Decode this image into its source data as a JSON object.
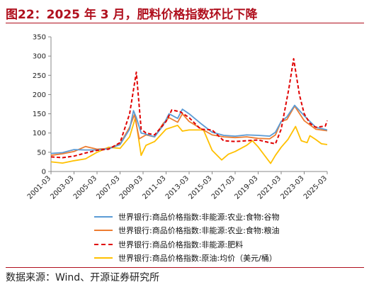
{
  "title": "图22：2025 年 3 月，肥料价格指数环比下降",
  "source": "数据来源：Wind、开源证券研究所",
  "chart_data": {
    "type": "line",
    "ylim": [
      0,
      350
    ],
    "yticks": [
      "0",
      "50",
      "100",
      "150",
      "200",
      "250",
      "300",
      "350"
    ],
    "xticks": [
      "2001-03",
      "2003-03",
      "2005-03",
      "2007-03",
      "2009-03",
      "2011-03",
      "2013-03",
      "2015-03",
      "2017-03",
      "2019-03",
      "2021-03",
      "2023-03",
      "2025-03"
    ],
    "legend_position": "bottom",
    "grid": false,
    "series": [
      {
        "name": "世界银行:商品价格指数:非能源:农业:食物:谷物",
        "color": "#5b9bd5",
        "dash": "solid",
        "points": [
          [
            "2001-03",
            47
          ],
          [
            "2002-03",
            49
          ],
          [
            "2003-03",
            57
          ],
          [
            "2004-03",
            56
          ],
          [
            "2005-03",
            56
          ],
          [
            "2006-03",
            59
          ],
          [
            "2007-03",
            70
          ],
          [
            "2008-01",
            110
          ],
          [
            "2008-05",
            158
          ],
          [
            "2008-08",
            140
          ],
          [
            "2009-01",
            100
          ],
          [
            "2009-06",
            97
          ],
          [
            "2010-03",
            90
          ],
          [
            "2010-12",
            120
          ],
          [
            "2011-06",
            150
          ],
          [
            "2012-03",
            138
          ],
          [
            "2012-08",
            162
          ],
          [
            "2013-03",
            150
          ],
          [
            "2014-03",
            125
          ],
          [
            "2015-03",
            102
          ],
          [
            "2016-03",
            94
          ],
          [
            "2017-03",
            92
          ],
          [
            "2018-03",
            95
          ],
          [
            "2019-03",
            94
          ],
          [
            "2020-03",
            92
          ],
          [
            "2020-09",
            102
          ],
          [
            "2021-03",
            130
          ],
          [
            "2021-09",
            142
          ],
          [
            "2022-05",
            172
          ],
          [
            "2023-03",
            145
          ],
          [
            "2024-03",
            115
          ],
          [
            "2025-03",
            108
          ]
        ]
      },
      {
        "name": "世界银行:商品价格指数:非能源:农业:食物:粮油",
        "color": "#ed7d31",
        "dash": "solid",
        "points": [
          [
            "2001-03",
            42
          ],
          [
            "2002-03",
            46
          ],
          [
            "2003-03",
            52
          ],
          [
            "2004-03",
            65
          ],
          [
            "2005-03",
            58
          ],
          [
            "2006-03",
            60
          ],
          [
            "2007-03",
            72
          ],
          [
            "2008-01",
            115
          ],
          [
            "2008-06",
            148
          ],
          [
            "2008-11",
            85
          ],
          [
            "2009-06",
            95
          ],
          [
            "2010-03",
            90
          ],
          [
            "2010-12",
            125
          ],
          [
            "2011-06",
            140
          ],
          [
            "2012-03",
            128
          ],
          [
            "2012-08",
            150
          ],
          [
            "2013-03",
            130
          ],
          [
            "2014-03",
            112
          ],
          [
            "2015-03",
            95
          ],
          [
            "2016-03",
            90
          ],
          [
            "2017-03",
            88
          ],
          [
            "2018-03",
            90
          ],
          [
            "2019-03",
            86
          ],
          [
            "2020-03",
            85
          ],
          [
            "2020-09",
            95
          ],
          [
            "2021-03",
            130
          ],
          [
            "2021-09",
            135
          ],
          [
            "2022-05",
            170
          ],
          [
            "2023-03",
            132
          ],
          [
            "2024-03",
            110
          ],
          [
            "2025-03",
            106
          ]
        ]
      },
      {
        "name": "世界银行:商品价格指数:非能源:肥料",
        "color": "#e00000",
        "dash": "dashed",
        "points": [
          [
            "2001-03",
            38
          ],
          [
            "2002-03",
            36
          ],
          [
            "2003-03",
            40
          ],
          [
            "2004-03",
            48
          ],
          [
            "2005-03",
            55
          ],
          [
            "2006-03",
            58
          ],
          [
            "2007-03",
            75
          ],
          [
            "2008-01",
            150
          ],
          [
            "2008-08",
            258
          ],
          [
            "2009-01",
            110
          ],
          [
            "2009-06",
            100
          ],
          [
            "2010-03",
            95
          ],
          [
            "2011-03",
            130
          ],
          [
            "2011-09",
            160
          ],
          [
            "2012-06",
            155
          ],
          [
            "2013-03",
            140
          ],
          [
            "2014-03",
            110
          ],
          [
            "2015-03",
            108
          ],
          [
            "2016-03",
            80
          ],
          [
            "2017-03",
            78
          ],
          [
            "2018-03",
            80
          ],
          [
            "2019-03",
            82
          ],
          [
            "2020-03",
            75
          ],
          [
            "2020-09",
            72
          ],
          [
            "2021-03",
            110
          ],
          [
            "2021-11",
            215
          ],
          [
            "2022-04",
            293
          ],
          [
            "2022-10",
            200
          ],
          [
            "2023-03",
            150
          ],
          [
            "2023-09",
            125
          ],
          [
            "2024-03",
            115
          ],
          [
            "2025-01",
            118
          ],
          [
            "2025-03",
            132
          ]
        ]
      },
      {
        "name": "世界银行:商品价格指数:原油:均价（美元/桶）",
        "color": "#ffc000",
        "dash": "solid",
        "points": [
          [
            "2001-03",
            25
          ],
          [
            "2002-03",
            22
          ],
          [
            "2003-03",
            28
          ],
          [
            "2004-03",
            33
          ],
          [
            "2005-03",
            50
          ],
          [
            "2006-03",
            63
          ],
          [
            "2007-03",
            60
          ],
          [
            "2008-01",
            90
          ],
          [
            "2008-07",
            140
          ],
          [
            "2009-01",
            42
          ],
          [
            "2009-06",
            68
          ],
          [
            "2010-03",
            78
          ],
          [
            "2011-03",
            110
          ],
          [
            "2012-03",
            120
          ],
          [
            "2012-08",
            105
          ],
          [
            "2013-03",
            108
          ],
          [
            "2014-06",
            108
          ],
          [
            "2015-03",
            55
          ],
          [
            "2016-01",
            30
          ],
          [
            "2016-08",
            45
          ],
          [
            "2017-03",
            52
          ],
          [
            "2018-03",
            68
          ],
          [
            "2018-09",
            80
          ],
          [
            "2019-03",
            64
          ],
          [
            "2020-04",
            21
          ],
          [
            "2020-09",
            42
          ],
          [
            "2021-03",
            63
          ],
          [
            "2021-10",
            83
          ],
          [
            "2022-06",
            117
          ],
          [
            "2022-12",
            80
          ],
          [
            "2023-06",
            75
          ],
          [
            "2023-09",
            93
          ],
          [
            "2024-03",
            83
          ],
          [
            "2024-09",
            72
          ],
          [
            "2025-03",
            70
          ]
        ]
      }
    ]
  }
}
